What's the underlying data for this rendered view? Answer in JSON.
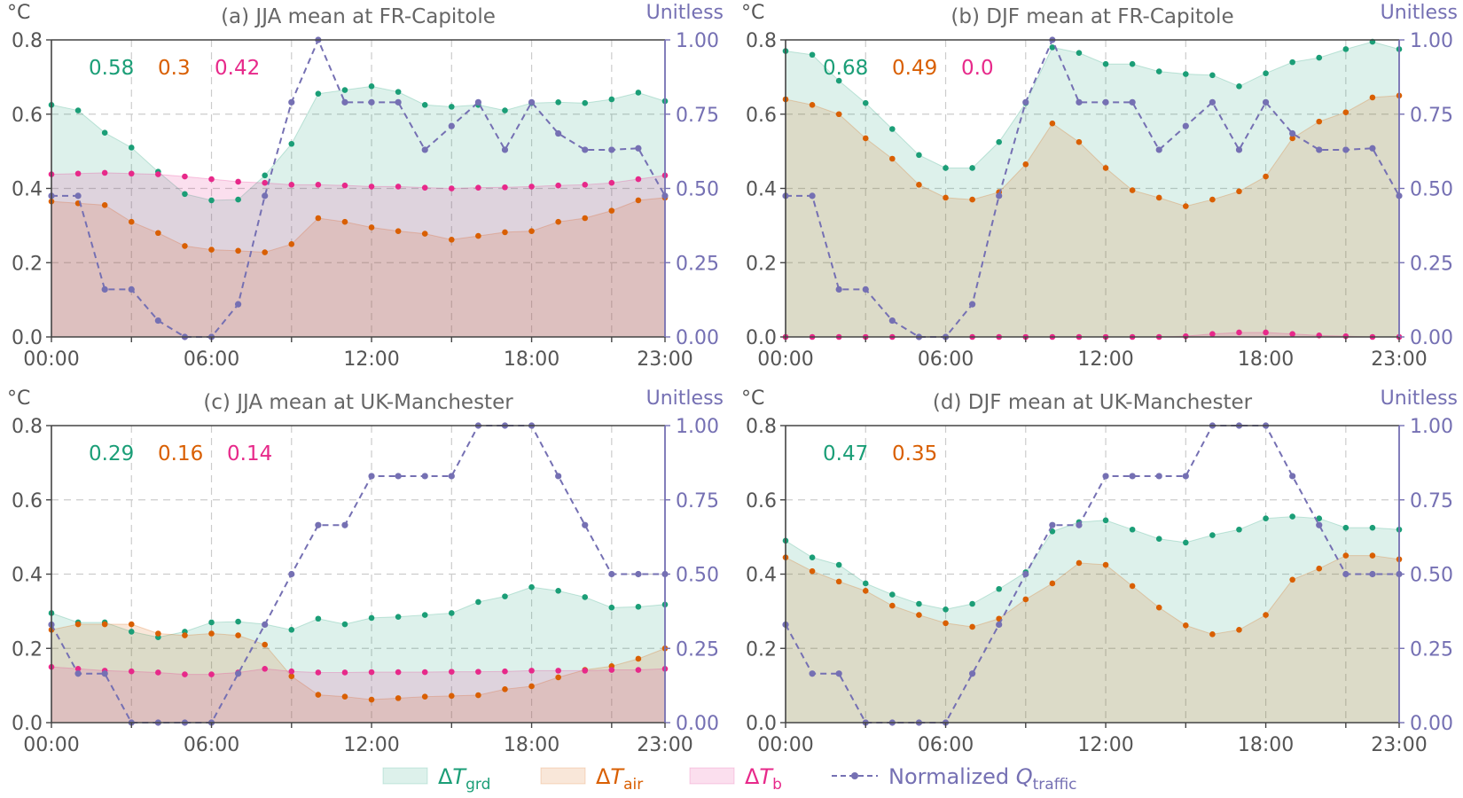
{
  "figure": {
    "hours": [
      "00:00",
      "01:00",
      "02:00",
      "03:00",
      "04:00",
      "05:00",
      "06:00",
      "07:00",
      "08:00",
      "09:00",
      "10:00",
      "11:00",
      "12:00",
      "13:00",
      "14:00",
      "15:00",
      "16:00",
      "17:00",
      "18:00",
      "19:00",
      "20:00",
      "21:00",
      "22:00",
      "23:00"
    ],
    "left_unit": "°C",
    "right_unit": "Unitless",
    "x_tick_labels": [
      "00:00",
      "06:00",
      "12:00",
      "18:00",
      "23:00"
    ],
    "y_left_tick_labels": [
      "0.0",
      "0.2",
      "0.4",
      "0.6",
      "0.8"
    ],
    "y_right_tick_labels": [
      "0.00",
      "0.25",
      "0.50",
      "0.75",
      "1.00"
    ],
    "colors": {
      "grd": "#1b9e77",
      "air": "#d95f02",
      "b": "#e7298a",
      "traffic": "#7570b3",
      "grd_fill": "rgba(27,158,119,0.15)",
      "air_fill": "rgba(217,95,2,0.15)",
      "b_fill": "rgba(231,41,138,0.15)",
      "axes": "#444444",
      "grid": "#cccccc"
    }
  },
  "legend": {
    "grd": {
      "delta": "Δ",
      "sym": "T",
      "sub": "grd"
    },
    "air": {
      "delta": "Δ",
      "sym": "T",
      "sub": "air"
    },
    "b": {
      "delta": "Δ",
      "sym": "T",
      "sub": "b"
    },
    "traffic": {
      "prefix": "Normalized ",
      "sym": "Q",
      "sub": "traffic"
    }
  },
  "chart_data": [
    {
      "type": "area",
      "title": "(a) JJA mean at FR-Capitole",
      "ylabel_left": "°C",
      "ylabel_right": "Unitless",
      "ylim_left": [
        0,
        0.8
      ],
      "ylim_right": [
        0,
        1.0
      ],
      "annotations": [
        "0.58",
        "0.3",
        "0.42"
      ],
      "series": [
        {
          "key": "grd",
          "values": [
            0.625,
            0.61,
            0.55,
            0.51,
            0.445,
            0.385,
            0.368,
            0.37,
            0.435,
            0.52,
            0.655,
            0.665,
            0.675,
            0.66,
            0.625,
            0.62,
            0.625,
            0.61,
            0.63,
            0.632,
            0.63,
            0.64,
            0.658,
            0.635
          ]
        },
        {
          "key": "air",
          "values": [
            0.365,
            0.36,
            0.355,
            0.31,
            0.28,
            0.245,
            0.235,
            0.232,
            0.228,
            0.25,
            0.32,
            0.31,
            0.295,
            0.285,
            0.278,
            0.262,
            0.272,
            0.282,
            0.285,
            0.31,
            0.32,
            0.34,
            0.368,
            0.375
          ]
        },
        {
          "key": "b",
          "values": [
            0.438,
            0.44,
            0.442,
            0.44,
            0.438,
            0.432,
            0.425,
            0.418,
            0.415,
            0.41,
            0.41,
            0.408,
            0.405,
            0.405,
            0.402,
            0.4,
            0.402,
            0.403,
            0.405,
            0.408,
            0.41,
            0.415,
            0.425,
            0.435
          ]
        },
        {
          "key": "traffic",
          "values": [
            0.475,
            0.475,
            0.16,
            0.16,
            0.055,
            0.0,
            0.0,
            0.11,
            0.475,
            0.79,
            1.0,
            0.79,
            0.79,
            0.79,
            0.63,
            0.71,
            0.79,
            0.63,
            0.79,
            0.685,
            0.63,
            0.63,
            0.635,
            0.475
          ]
        }
      ]
    },
    {
      "type": "area",
      "title": "(b) DJF mean at FR-Capitole",
      "ylabel_left": "°C",
      "ylabel_right": "Unitless",
      "ylim_left": [
        0,
        0.8
      ],
      "ylim_right": [
        0,
        1.0
      ],
      "annotations": [
        "0.68",
        "0.49",
        "0.0"
      ],
      "series": [
        {
          "key": "grd",
          "values": [
            0.77,
            0.76,
            0.69,
            0.63,
            0.56,
            0.49,
            0.455,
            0.455,
            0.525,
            0.63,
            0.78,
            0.765,
            0.735,
            0.735,
            0.715,
            0.708,
            0.705,
            0.675,
            0.71,
            0.74,
            0.752,
            0.775,
            0.795,
            0.775
          ]
        },
        {
          "key": "air",
          "values": [
            0.64,
            0.625,
            0.6,
            0.535,
            0.48,
            0.41,
            0.375,
            0.37,
            0.39,
            0.465,
            0.575,
            0.525,
            0.455,
            0.395,
            0.375,
            0.352,
            0.37,
            0.392,
            0.432,
            0.535,
            0.58,
            0.605,
            0.645,
            0.65
          ]
        },
        {
          "key": "b",
          "values": [
            0.0,
            0.0,
            0.0,
            0.0,
            0.0,
            0.0,
            0.0,
            0.0,
            0.0,
            0.0,
            0.0,
            0.0,
            0.0,
            0.0,
            0.0,
            0.002,
            0.008,
            0.012,
            0.012,
            0.008,
            0.004,
            0.002,
            0.0,
            0.0
          ]
        },
        {
          "key": "traffic",
          "values": [
            0.475,
            0.475,
            0.16,
            0.16,
            0.055,
            0.0,
            0.0,
            0.11,
            0.475,
            0.79,
            1.0,
            0.79,
            0.79,
            0.79,
            0.63,
            0.71,
            0.79,
            0.63,
            0.79,
            0.685,
            0.63,
            0.63,
            0.635,
            0.475
          ]
        }
      ]
    },
    {
      "type": "area",
      "title": "(c) JJA mean at UK-Manchester",
      "ylabel_left": "°C",
      "ylabel_right": "Unitless",
      "ylim_left": [
        0,
        0.8
      ],
      "ylim_right": [
        0,
        1.0
      ],
      "annotations": [
        "0.29",
        "0.16",
        "0.14"
      ],
      "series": [
        {
          "key": "grd",
          "values": [
            0.295,
            0.27,
            0.27,
            0.245,
            0.23,
            0.245,
            0.27,
            0.272,
            0.265,
            0.25,
            0.28,
            0.265,
            0.282,
            0.285,
            0.29,
            0.295,
            0.325,
            0.34,
            0.365,
            0.355,
            0.338,
            0.31,
            0.312,
            0.318
          ]
        },
        {
          "key": "air",
          "values": [
            0.25,
            0.265,
            0.265,
            0.265,
            0.24,
            0.235,
            0.24,
            0.235,
            0.21,
            0.125,
            0.075,
            0.07,
            0.062,
            0.066,
            0.07,
            0.072,
            0.074,
            0.09,
            0.098,
            0.122,
            0.142,
            0.152,
            0.172,
            0.2
          ]
        },
        {
          "key": "b",
          "values": [
            0.15,
            0.145,
            0.14,
            0.138,
            0.135,
            0.13,
            0.13,
            0.135,
            0.145,
            0.138,
            0.135,
            0.135,
            0.136,
            0.136,
            0.136,
            0.137,
            0.137,
            0.138,
            0.14,
            0.14,
            0.14,
            0.142,
            0.142,
            0.145
          ]
        },
        {
          "key": "traffic",
          "values": [
            0.33,
            0.165,
            0.165,
            0.0,
            0.0,
            0.0,
            0.0,
            0.165,
            0.33,
            0.5,
            0.665,
            0.665,
            0.83,
            0.83,
            0.83,
            0.83,
            1.0,
            1.0,
            1.0,
            0.83,
            0.665,
            0.5,
            0.5,
            0.5
          ]
        }
      ]
    },
    {
      "type": "area",
      "title": "(d) DJF mean at UK-Manchester",
      "ylabel_left": "°C",
      "ylabel_right": "Unitless",
      "ylim_left": [
        0,
        0.8
      ],
      "ylim_right": [
        0,
        1.0
      ],
      "annotations": [
        "0.47",
        "0.35"
      ],
      "series": [
        {
          "key": "grd",
          "values": [
            0.49,
            0.445,
            0.425,
            0.375,
            0.345,
            0.32,
            0.305,
            0.32,
            0.36,
            0.405,
            0.515,
            0.54,
            0.545,
            0.52,
            0.495,
            0.485,
            0.505,
            0.52,
            0.55,
            0.555,
            0.55,
            0.525,
            0.525,
            0.52
          ]
        },
        {
          "key": "air",
          "values": [
            0.445,
            0.408,
            0.38,
            0.355,
            0.315,
            0.29,
            0.268,
            0.258,
            0.28,
            0.332,
            0.375,
            0.43,
            0.425,
            0.368,
            0.31,
            0.262,
            0.238,
            0.25,
            0.29,
            0.385,
            0.415,
            0.45,
            0.45,
            0.44
          ]
        },
        {
          "key": "b",
          "values": [
            0.0,
            0.0,
            0.0,
            0.0,
            0.0,
            0.0,
            0.0,
            0.0,
            0.0,
            0.0,
            0.0,
            0.0,
            0.0,
            0.0,
            0.0,
            0.0,
            0.0,
            0.0,
            0.0,
            0.0,
            0.0,
            0.0,
            0.0,
            0.0
          ]
        },
        {
          "key": "traffic",
          "values": [
            0.33,
            0.165,
            0.165,
            0.0,
            0.0,
            0.0,
            0.0,
            0.165,
            0.33,
            0.5,
            0.665,
            0.665,
            0.83,
            0.83,
            0.83,
            0.83,
            1.0,
            1.0,
            1.0,
            0.83,
            0.665,
            0.5,
            0.5,
            0.5
          ]
        }
      ]
    }
  ]
}
